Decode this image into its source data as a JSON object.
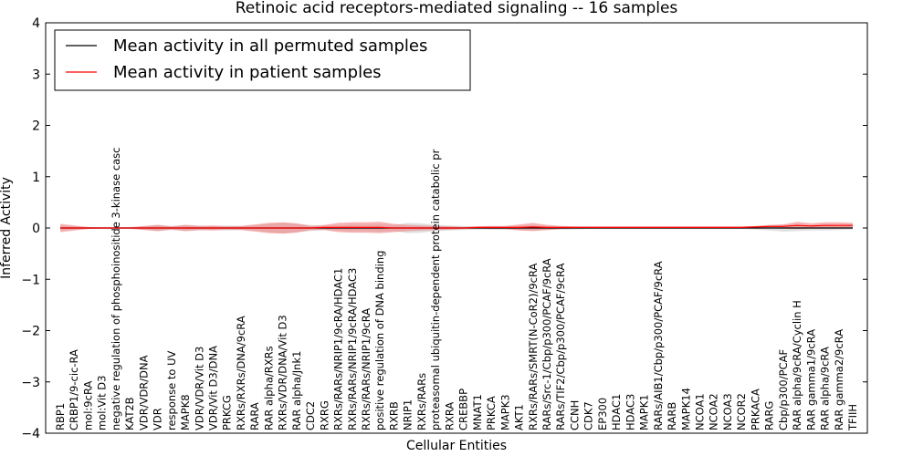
{
  "chart_data": {
    "type": "line",
    "title": "Retinoic acid receptors-mediated signaling -- 16 samples",
    "xlabel": "Cellular Entities",
    "ylabel": "Inferred Activity",
    "ylim": [
      -4,
      4
    ],
    "yticks": [
      "−4",
      "−3",
      "−2",
      "−1",
      "0",
      "1",
      "2",
      "3",
      "4"
    ],
    "grid": false,
    "legend_position": "top-left",
    "colors": {
      "permuted": "#000000",
      "patient": "#ff0000",
      "patient_band": "#f08080",
      "permuted_band": "#bbbbbb"
    },
    "categories": [
      "RBP1",
      "CRBP1/9-cic-RA",
      "mol:9cRA",
      "mol:Vit D3",
      "negative regulation of phosphoinositide 3-kinase casc",
      "KAT2B",
      "VDR/VDR/DNA",
      "VDR",
      "response to UV",
      "MAPK8",
      "VDR/VDR/Vit D3",
      "VDR/Vit D3/DNA",
      "PRKCG",
      "RXRs/RXRs/DNA/9cRA",
      "RARA",
      "RAR alpha/RXRs",
      "RXRs/VDR/DNA/Vit D3",
      "RAR alpha/Jnk1",
      "CDC2",
      "RXRG",
      "RXRs/RARs/NRIP1/9cRA/HDAC1",
      "RXRs/RARs/NRIP1/9cRA/HDAC3",
      "RXRs/RARs/NRIP1/9cRA",
      "positive regulation of DNA binding",
      "RXRB",
      "NRIP1",
      "RXRs/RARs",
      "proteasomal ubiquitin-dependent protein catabolic pr",
      "RXRA",
      "CREBBP",
      "MNAT1",
      "PRKCA",
      "MAPK3",
      "AKT1",
      "RXRs/RARs/SMRT(N-CoR2)/9cRA",
      "RARs/Src-1/Cbp/p300/PCAF/9cRA",
      "RARs/TIF2/Cbp/p300/PCAF/9cRA",
      "CCNH",
      "CDK7",
      "EP300",
      "HDAC1",
      "HDAC3",
      "MAPK1",
      "RARs/AIB1/Cbp/p300/PCAF/9cRA",
      "RARB",
      "MAPK14",
      "NCOA1",
      "NCOA2",
      "NCOA3",
      "NCOR2",
      "PRKACA",
      "RARG",
      "Cbp/p300/PCAF",
      "RAR alpha/9cRA/Cyclin H",
      "RAR gamma1/9cRA",
      "RAR alpha/9cRA",
      "RAR gamma2/9cRA",
      "TFIIH"
    ],
    "series": [
      {
        "name": "Mean activity in all permuted samples",
        "values": [
          0,
          0,
          0,
          0,
          0,
          0,
          0,
          0,
          0,
          0,
          0,
          0,
          0,
          0,
          0,
          0,
          0,
          0,
          0,
          0,
          0,
          0,
          0,
          0,
          0,
          0,
          0,
          0,
          0,
          0,
          0,
          0,
          0,
          0,
          0,
          0,
          0,
          0,
          0,
          0,
          0,
          0,
          0,
          0,
          0,
          0,
          0,
          0,
          0,
          0,
          0,
          0,
          0,
          0,
          0,
          0,
          0,
          0
        ],
        "band": [
          0.04,
          0.03,
          0.02,
          0.02,
          0.02,
          0.02,
          0.03,
          0.06,
          0.04,
          0.06,
          0.05,
          0.04,
          0.05,
          0.04,
          0.05,
          0.08,
          0.1,
          0.08,
          0.06,
          0.04,
          0.05,
          0.06,
          0.06,
          0.07,
          0.06,
          0.1,
          0.09,
          0.06,
          0.05,
          0.04,
          0.03,
          0.03,
          0.03,
          0.04,
          0.05,
          0.04,
          0.03,
          0.03,
          0.02,
          0.02,
          0.02,
          0.02,
          0.02,
          0.02,
          0.02,
          0.02,
          0.02,
          0.02,
          0.02,
          0.02,
          0.03,
          0.05,
          0.07,
          0.06,
          0.05,
          0.05,
          0.04,
          0.03
        ]
      },
      {
        "name": "Mean activity in patient samples",
        "values": [
          0,
          0,
          0,
          0,
          0,
          0,
          0,
          0,
          0,
          0,
          0,
          0,
          0,
          0,
          0,
          0,
          0,
          0,
          0,
          0.01,
          0.01,
          0.01,
          0.01,
          0.01,
          0,
          0,
          0,
          0,
          0,
          0,
          0.01,
          0.01,
          0.01,
          0.01,
          0.02,
          0.01,
          0.01,
          0.01,
          0.01,
          0.01,
          0.01,
          0.01,
          0.01,
          0.01,
          0.01,
          0.01,
          0.01,
          0.01,
          0.01,
          0.01,
          0.02,
          0.03,
          0.03,
          0.05,
          0.04,
          0.05,
          0.05,
          0.05
        ],
        "band": [
          0.08,
          0.05,
          0.02,
          0.01,
          0.01,
          0.01,
          0.04,
          0.06,
          0.03,
          0.06,
          0.04,
          0.05,
          0.03,
          0.04,
          0.07,
          0.1,
          0.11,
          0.09,
          0.04,
          0.05,
          0.09,
          0.1,
          0.1,
          0.11,
          0.08,
          0.06,
          0.05,
          0.04,
          0.03,
          0.02,
          0.02,
          0.03,
          0.03,
          0.06,
          0.08,
          0.05,
          0.03,
          0.02,
          0.02,
          0.02,
          0.02,
          0.02,
          0.02,
          0.02,
          0.02,
          0.02,
          0.02,
          0.02,
          0.02,
          0.02,
          0.02,
          0.03,
          0.04,
          0.07,
          0.05,
          0.06,
          0.06,
          0.05
        ]
      }
    ]
  }
}
